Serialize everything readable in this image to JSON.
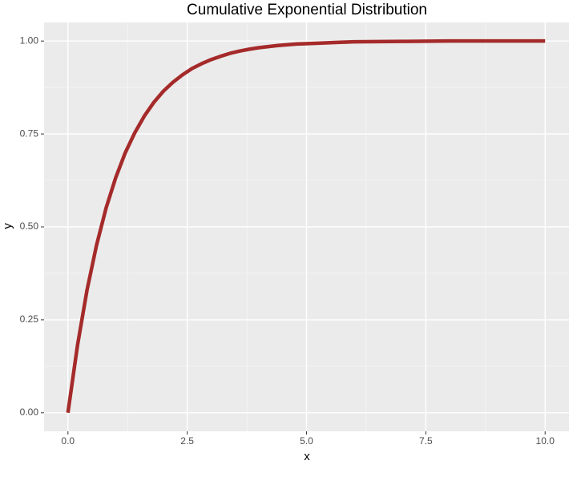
{
  "chart_data": {
    "type": "line",
    "title": "Cumulative Exponential Distribution",
    "x_label": "x",
    "y_label": "y",
    "x": [
      0,
      0.2,
      0.4,
      0.6,
      0.8,
      1.0,
      1.2,
      1.4,
      1.6,
      1.8,
      2.0,
      2.2,
      2.4,
      2.6,
      2.8,
      3.0,
      3.2,
      3.4,
      3.6,
      3.8,
      4.0,
      4.4,
      4.8,
      5.2,
      5.6,
      6.0,
      7.0,
      8.0,
      9.0,
      10.0
    ],
    "series": [
      {
        "name": "y",
        "color": "#a52a2a",
        "values": [
          0,
          0.181,
          0.33,
          0.451,
          0.551,
          0.632,
          0.699,
          0.753,
          0.798,
          0.835,
          0.865,
          0.889,
          0.909,
          0.926,
          0.939,
          0.95,
          0.959,
          0.967,
          0.973,
          0.978,
          0.982,
          0.988,
          0.992,
          0.994,
          0.996,
          0.998,
          0.999,
          1.0,
          1.0,
          1.0
        ]
      }
    ],
    "xlim": [
      -0.5,
      10.5
    ],
    "ylim": [
      -0.05,
      1.05
    ],
    "xticks": [
      {
        "value": 0,
        "label": "0.0"
      },
      {
        "value": 2.5,
        "label": "2.5"
      },
      {
        "value": 5,
        "label": "5.0"
      },
      {
        "value": 7.5,
        "label": "7.5"
      },
      {
        "value": 10,
        "label": "10.0"
      }
    ],
    "yticks": [
      {
        "value": 0,
        "label": "0.00"
      },
      {
        "value": 0.25,
        "label": "0.25"
      },
      {
        "value": 0.5,
        "label": "0.50"
      },
      {
        "value": 0.75,
        "label": "0.75"
      },
      {
        "value": 1,
        "label": "1.00"
      }
    ],
    "xminorticks": [
      1.25,
      3.75,
      6.25,
      8.75
    ],
    "yminorticks": [
      0.125,
      0.375,
      0.625,
      0.875
    ],
    "grid": true
  }
}
